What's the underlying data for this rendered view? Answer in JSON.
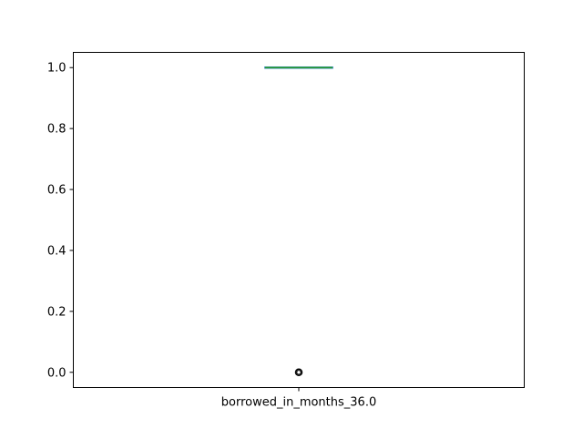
{
  "chart_data": {
    "type": "box",
    "categories": [
      "borrowed_in_months_36.0"
    ],
    "series": [
      {
        "q1": 1.0,
        "median": 1.0,
        "q3": 1.0,
        "whisker_low": 1.0,
        "whisker_high": 1.0,
        "outliers": [
          0.0
        ]
      }
    ],
    "ylim": [
      -0.05,
      1.05
    ],
    "yticks": [
      0.0,
      0.2,
      0.4,
      0.6,
      0.8,
      1.0
    ],
    "ytick_labels": [
      "0.0",
      "0.2",
      "0.4",
      "0.6",
      "0.8",
      "1.0"
    ],
    "grid": false,
    "colors": {
      "box": "#1f77b4",
      "median": "#2ca02c",
      "whisker": "#1f77b4",
      "outlier": "#000000"
    }
  }
}
